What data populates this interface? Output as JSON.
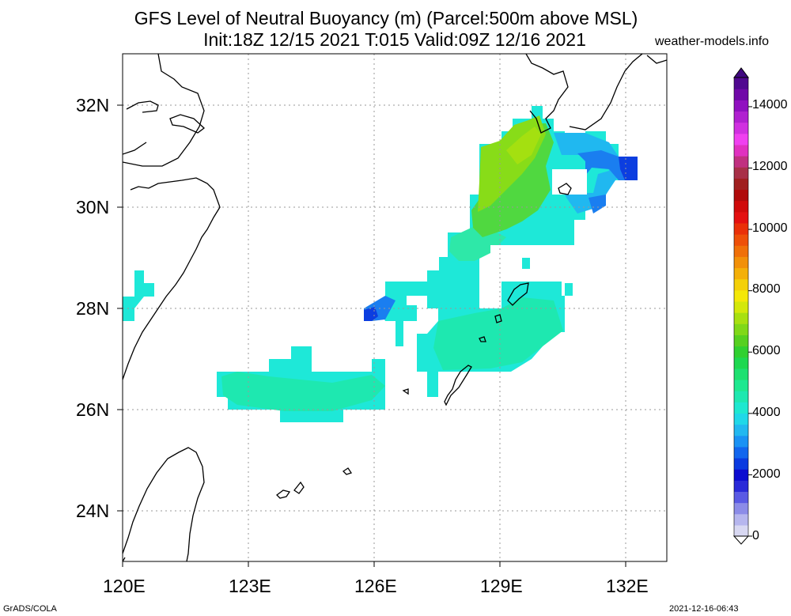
{
  "title": {
    "line1": "GFS Level of Neutral Buoyancy (m) (Parcel:500m above MSL)",
    "line2": "Init:18Z 12/15 2021 T:015 Valid:09Z 12/16 2021"
  },
  "site": "weather-models.info",
  "axes": {
    "lat_labels": [
      "32N",
      "30N",
      "28N",
      "26N",
      "24N"
    ],
    "lon_labels": [
      "120E",
      "123E",
      "126E",
      "129E",
      "132E"
    ]
  },
  "colorbar": {
    "labels": [
      "14000",
      "12000",
      "10000",
      "8000",
      "6000",
      "4000",
      "2000",
      "0"
    ],
    "colors": [
      "#d8d8f2",
      "#b6b6ee",
      "#8c8ce8",
      "#5a5ae4",
      "#2a2ad8",
      "#0c0cd0",
      "#0a3ae0",
      "#1266ee",
      "#1a92f4",
      "#22b8f0",
      "#20d8e8",
      "#1ee8d0",
      "#1ee8b0",
      "#1ee890",
      "#1ee070",
      "#1ed850",
      "#30d030",
      "#56d020",
      "#80d818",
      "#a8e010",
      "#d4e80a",
      "#f4e808",
      "#f4d008",
      "#f4b008",
      "#f29008",
      "#f07008",
      "#ee5008",
      "#ea3008",
      "#e41010",
      "#d00a0a",
      "#b00a0a",
      "#a02020",
      "#a83048",
      "#c03080",
      "#e030c0",
      "#f040f0",
      "#d030e0",
      "#b020d0",
      "#9010c0",
      "#7008a8",
      "#500890"
    ]
  },
  "footer": {
    "left": "GrADS/COLA",
    "right": "2021-12-16-06:43"
  },
  "colors": {
    "cyan": "#1ee8d8",
    "aqua_green": "#1ee8b8",
    "lime": "#80dc18",
    "green": "#40d040",
    "light_blue": "#20b0f0",
    "blue": "#0c3ee0"
  }
}
